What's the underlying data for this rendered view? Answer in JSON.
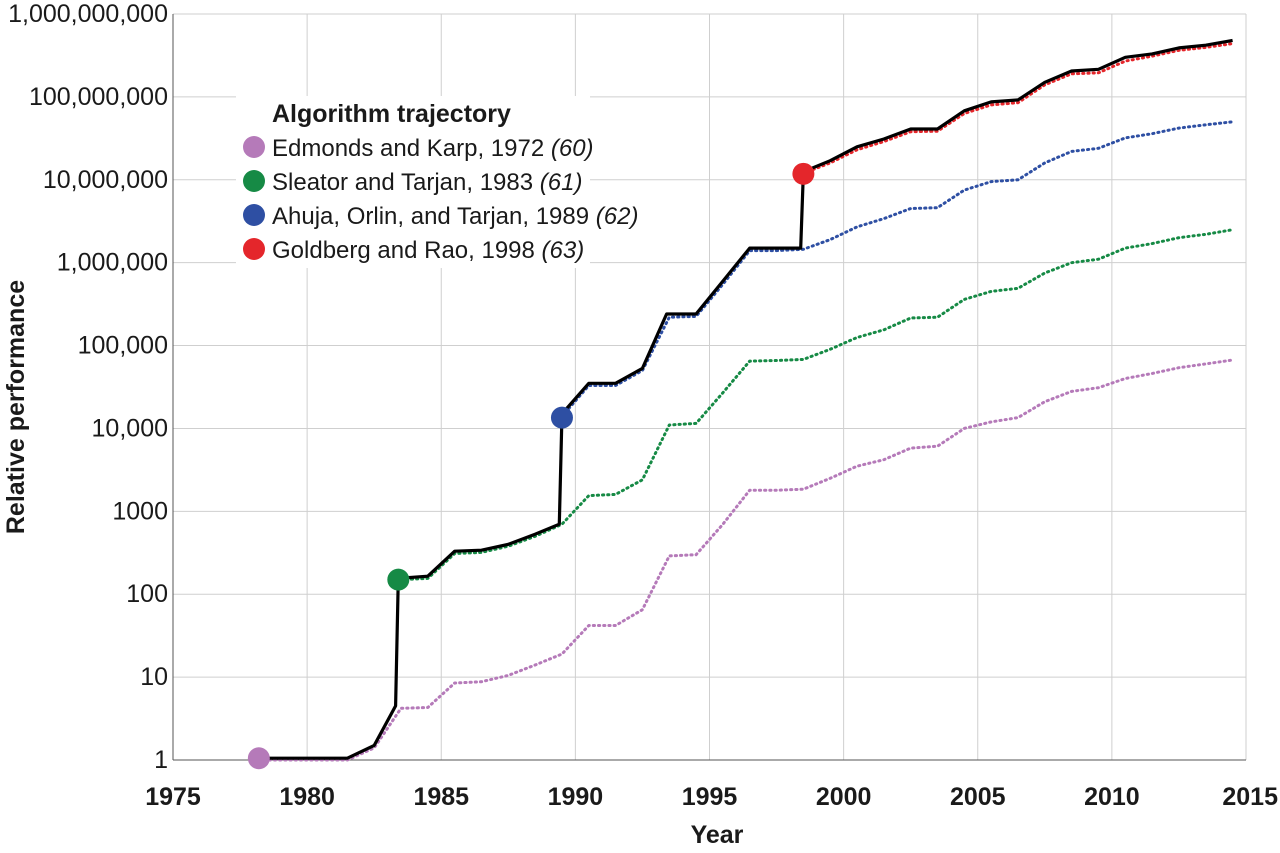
{
  "chart_data": {
    "type": "line",
    "xlabel": "Year",
    "ylabel": "Relative performance",
    "y_scale": "log",
    "xlim": [
      1975,
      2015
    ],
    "ylim": [
      1,
      1000000000
    ],
    "x_ticks": [
      1975,
      1980,
      1985,
      1990,
      1995,
      2000,
      2005,
      2010,
      2015
    ],
    "x_tick_labels": [
      "1975",
      "1980",
      "1985",
      "1990",
      "1995",
      "2000",
      "2005",
      "2010",
      "2015"
    ],
    "y_ticks": [
      1,
      10,
      100,
      1000,
      10000,
      100000,
      1000000,
      10000000,
      100000000,
      1000000000
    ],
    "y_tick_labels": [
      "1",
      "10",
      "100",
      "1000",
      "10,000",
      "100,000",
      "1,000,000",
      "10,000,000",
      "100,000,000",
      "1,000,000,000"
    ],
    "grid": true,
    "legend": {
      "title": "Algorithm trajectory",
      "placement": "top-left",
      "entries": [
        {
          "label": "Edmonds and Karp, 1972 ",
          "ref": "(60)",
          "color": "#b57ab9"
        },
        {
          "label": "Sleator and Tarjan, 1983 ",
          "ref": "(61)",
          "color": "#168a45"
        },
        {
          "label": "Ahuja, Orlin, and Tarjan, 1989 ",
          "ref": "(62)",
          "color": "#2e4fa3"
        },
        {
          "label": "Goldberg and Rao, 1998 ",
          "ref": "(63)",
          "color": "#e4262b"
        }
      ]
    },
    "series": [
      {
        "style": "solid",
        "color": "#000000",
        "x": [
          1978.2,
          1981.5,
          1982.5,
          1983.3,
          1983.4,
          1984.5,
          1985.5,
          1986.5,
          1987.5,
          1988.5,
          1989.4,
          1989.5,
          1990.5,
          1991.5,
          1992.5,
          1993.4,
          1994.5,
          1995.5,
          1996.5,
          1997.5,
          1998.4,
          1998.5,
          1999.5,
          2000.5,
          2001.5,
          2002.5,
          2003.5,
          2004.5,
          2005.5,
          2006.5,
          2007.5,
          2008.5,
          2009.5,
          2010.5,
          2011.5,
          2012.5,
          2013.5,
          2014.5
        ],
        "values": [
          1.05,
          1.05,
          1.5,
          4.5,
          155,
          165,
          330,
          340,
          400,
          530,
          700,
          15000,
          35000,
          35000,
          53000,
          240000,
          240000,
          600000,
          1500000,
          1500000,
          1500000,
          12500000,
          17000000,
          25000000,
          31000000,
          41000000,
          41000000,
          68000000,
          87000000,
          92000000,
          150000000,
          205000000,
          215000000,
          300000000,
          330000000,
          390000000,
          420000000,
          480000000
        ]
      },
      {
        "style": "dotted",
        "color": "#b57ab9",
        "x": [
          1978.2,
          1981.5,
          1982.5,
          1983.5,
          1984.5,
          1985.5,
          1986.5,
          1987.5,
          1988.5,
          1989.5,
          1990.5,
          1991.5,
          1992.5,
          1993.5,
          1994.5,
          1995.5,
          1996.5,
          1997.5,
          1998.5,
          1999.5,
          2000.5,
          2001.5,
          2002.5,
          2003.5,
          2004.5,
          2005.5,
          2006.5,
          2007.5,
          2008.5,
          2009.5,
          2010.5,
          2011.5,
          2012.5,
          2013.5,
          2014.5
        ],
        "values": [
          1,
          1,
          1.4,
          4.2,
          4.3,
          8.5,
          8.8,
          10.5,
          14,
          19,
          42,
          42,
          65,
          290,
          300,
          700,
          1800,
          1800,
          1850,
          2500,
          3500,
          4200,
          5800,
          6100,
          10000,
          12000,
          13500,
          21000,
          28000,
          31000,
          40000,
          46000,
          54000,
          60000,
          67000
        ]
      },
      {
        "style": "dotted",
        "color": "#168a45",
        "x": [
          1983.5,
          1984.5,
          1985.5,
          1986.5,
          1987.5,
          1988.5,
          1989.5,
          1990.5,
          1991.5,
          1992.5,
          1993.5,
          1994.5,
          1995.5,
          1996.5,
          1997.5,
          1998.5,
          1999.5,
          2000.5,
          2001.5,
          2002.5,
          2003.5,
          2004.5,
          2005.5,
          2006.5,
          2007.5,
          2008.5,
          2009.5,
          2010.5,
          2011.5,
          2012.5,
          2013.5,
          2014.5
        ],
        "values": [
          150,
          155,
          310,
          320,
          380,
          500,
          700,
          1550,
          1600,
          2400,
          11000,
          11500,
          27000,
          65000,
          66000,
          68000,
          90000,
          125000,
          155000,
          215000,
          220000,
          360000,
          450000,
          490000,
          750000,
          1000000,
          1100000,
          1500000,
          1700000,
          2000000,
          2200000,
          2500000
        ]
      },
      {
        "style": "dotted",
        "color": "#2e4fa3",
        "x": [
          1989.5,
          1990.5,
          1991.5,
          1992.5,
          1993.5,
          1994.5,
          1995.5,
          1996.5,
          1997.5,
          1998.5,
          1999.5,
          2000.5,
          2001.5,
          2002.5,
          2003.5,
          2004.5,
          2005.5,
          2006.5,
          2007.5,
          2008.5,
          2009.5,
          2010.5,
          2011.5,
          2012.5,
          2013.5,
          2014.5
        ],
        "values": [
          14000,
          33000,
          33000,
          50000,
          220000,
          225000,
          550000,
          1400000,
          1400000,
          1450000,
          1900000,
          2700000,
          3400000,
          4500000,
          4600000,
          7500000,
          9500000,
          10000000,
          16000000,
          22000000,
          24000000,
          32000000,
          36000000,
          42000000,
          46000000,
          50000000
        ]
      },
      {
        "style": "dotted",
        "color": "#e4262b",
        "x": [
          1998.5,
          1999.5,
          2000.5,
          2001.5,
          2002.5,
          2003.5,
          2004.5,
          2005.5,
          2006.5,
          2007.5,
          2008.5,
          2009.5,
          2010.5,
          2011.5,
          2012.5,
          2013.5,
          2014.5
        ],
        "values": [
          12000000,
          16000000,
          23000000,
          29000000,
          38000000,
          38500000,
          63000000,
          80000000,
          85000000,
          140000000,
          190000000,
          195000000,
          270000000,
          310000000,
          365000000,
          395000000,
          440000000
        ]
      }
    ],
    "markers": [
      {
        "x": 1978.2,
        "y": 1.05,
        "color": "#b57ab9"
      },
      {
        "x": 1983.4,
        "y": 150,
        "color": "#168a45"
      },
      {
        "x": 1989.5,
        "y": 13500,
        "color": "#2e4fa3"
      },
      {
        "x": 1998.5,
        "y": 11800000,
        "color": "#e4262b"
      }
    ]
  }
}
